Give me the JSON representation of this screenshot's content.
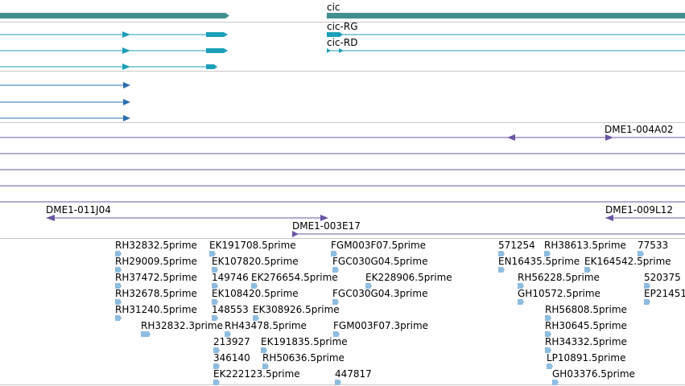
{
  "colors": {
    "gene": "#3f8f8f",
    "transcript": "#1d9fb8",
    "transcript_thin": "#2a6eb0",
    "clone": "#6b55a4",
    "est": "#8fbde0",
    "divider": "#c8c8c8"
  },
  "genes": [
    {
      "label": "",
      "icon": "arrow-right"
    },
    {
      "label": "cic",
      "icon": "gene-bar"
    }
  ],
  "transcripts": [
    {
      "label": "cic-RG"
    },
    {
      "label": "cic-RD"
    }
  ],
  "clones": [
    {
      "label": "DME1-004A02"
    },
    {
      "label": "DME1-011J04"
    },
    {
      "label": "DME1-003E17"
    },
    {
      "label": "DME1-009L12"
    }
  ],
  "ests": [
    {
      "label": "RH32832.5prime"
    },
    {
      "label": "EK191708.5prime"
    },
    {
      "label": "FGM003F07.5prime"
    },
    {
      "label": "571254"
    },
    {
      "label": "RH38613.5prime"
    },
    {
      "label": "77533"
    },
    {
      "label": "RH29009.5prime"
    },
    {
      "label": "EK107820.5prime"
    },
    {
      "label": "FGC030G04.5prime"
    },
    {
      "label": "EN16435.5prime"
    },
    {
      "label": "EK164542.5prime"
    },
    {
      "label": "RH37472.5prime"
    },
    {
      "label": "149746"
    },
    {
      "label": "EK276654.5prime"
    },
    {
      "label": "EK228906.5prime"
    },
    {
      "label": "RH56228.5prime"
    },
    {
      "label": "520375"
    },
    {
      "label": "RH32678.5prime"
    },
    {
      "label": "EK108420.5prime"
    },
    {
      "label": "FGC030G04.3prime"
    },
    {
      "label": "GH10572.5prime"
    },
    {
      "label": "EP21451"
    },
    {
      "label": "RH31240.5prime"
    },
    {
      "label": "148553"
    },
    {
      "label": "EK308926.5prime"
    },
    {
      "label": "RH56808.5prime"
    },
    {
      "label": "RH32832.3prime"
    },
    {
      "label": "RH43478.5prime"
    },
    {
      "label": "FGM003F07.3prime"
    },
    {
      "label": "RH30645.5prime"
    },
    {
      "label": "213927"
    },
    {
      "label": "EK191835.5prime"
    },
    {
      "label": "RH34332.5prime"
    },
    {
      "label": "346140"
    },
    {
      "label": "RH50636.5prime"
    },
    {
      "label": "LP10891.5prime"
    },
    {
      "label": "EK222123.5prime"
    },
    {
      "label": "447817"
    },
    {
      "label": "GH03376.5prime"
    }
  ]
}
